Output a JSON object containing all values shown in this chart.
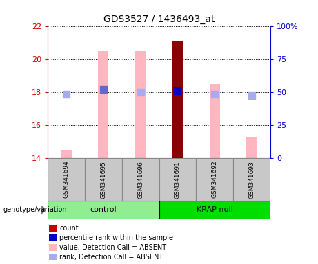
{
  "title": "GDS3527 / 1436493_at",
  "samples": [
    "GSM341694",
    "GSM341695",
    "GSM341696",
    "GSM341691",
    "GSM341692",
    "GSM341693"
  ],
  "groups": [
    "control",
    "control",
    "control",
    "KRAP null",
    "KRAP null",
    "KRAP null"
  ],
  "group_labels": [
    "control",
    "KRAP null"
  ],
  "group_colors": [
    "#90EE90",
    "#00DD00"
  ],
  "bar_values": [
    14.5,
    20.5,
    20.5,
    21.1,
    18.5,
    15.3
  ],
  "bar_colors": [
    "#FFB6C1",
    "#FFB6C1",
    "#FFB6C1",
    "#8B0000",
    "#FFB6C1",
    "#FFB6C1"
  ],
  "rank_values": [
    17.9,
    18.2,
    18.0,
    18.1,
    17.9,
    17.8
  ],
  "rank_colors": [
    "#AAAAEE",
    "#6666CC",
    "#AAAAEE",
    "#0000CC",
    "#AAAAEE",
    "#AAAAEE"
  ],
  "ylim_left": [
    14,
    22
  ],
  "yticks_left": [
    14,
    16,
    18,
    20,
    22
  ],
  "ylim_right": [
    0,
    100
  ],
  "yticks_right": [
    0,
    25,
    50,
    75,
    100
  ],
  "ytick_labels_right": [
    "0",
    "25",
    "50",
    "75",
    "100%"
  ],
  "left_axis_color": "#CC0000",
  "right_axis_color": "#0000CC",
  "bar_width": 0.28,
  "rank_marker_size": 45,
  "grid_color": "black",
  "bg_color": "#FFFFFF",
  "plot_bg": "#FFFFFF",
  "legend_items": [
    {
      "label": "count",
      "color": "#CC0000"
    },
    {
      "label": "percentile rank within the sample",
      "color": "#0000CC"
    },
    {
      "label": "value, Detection Call = ABSENT",
      "color": "#FFB6C1"
    },
    {
      "label": "rank, Detection Call = ABSENT",
      "color": "#AAAAEE"
    }
  ],
  "genotype_label": "genotype/variation",
  "sample_box_color": "#C8C8C8",
  "sample_box_edge": "#888888"
}
